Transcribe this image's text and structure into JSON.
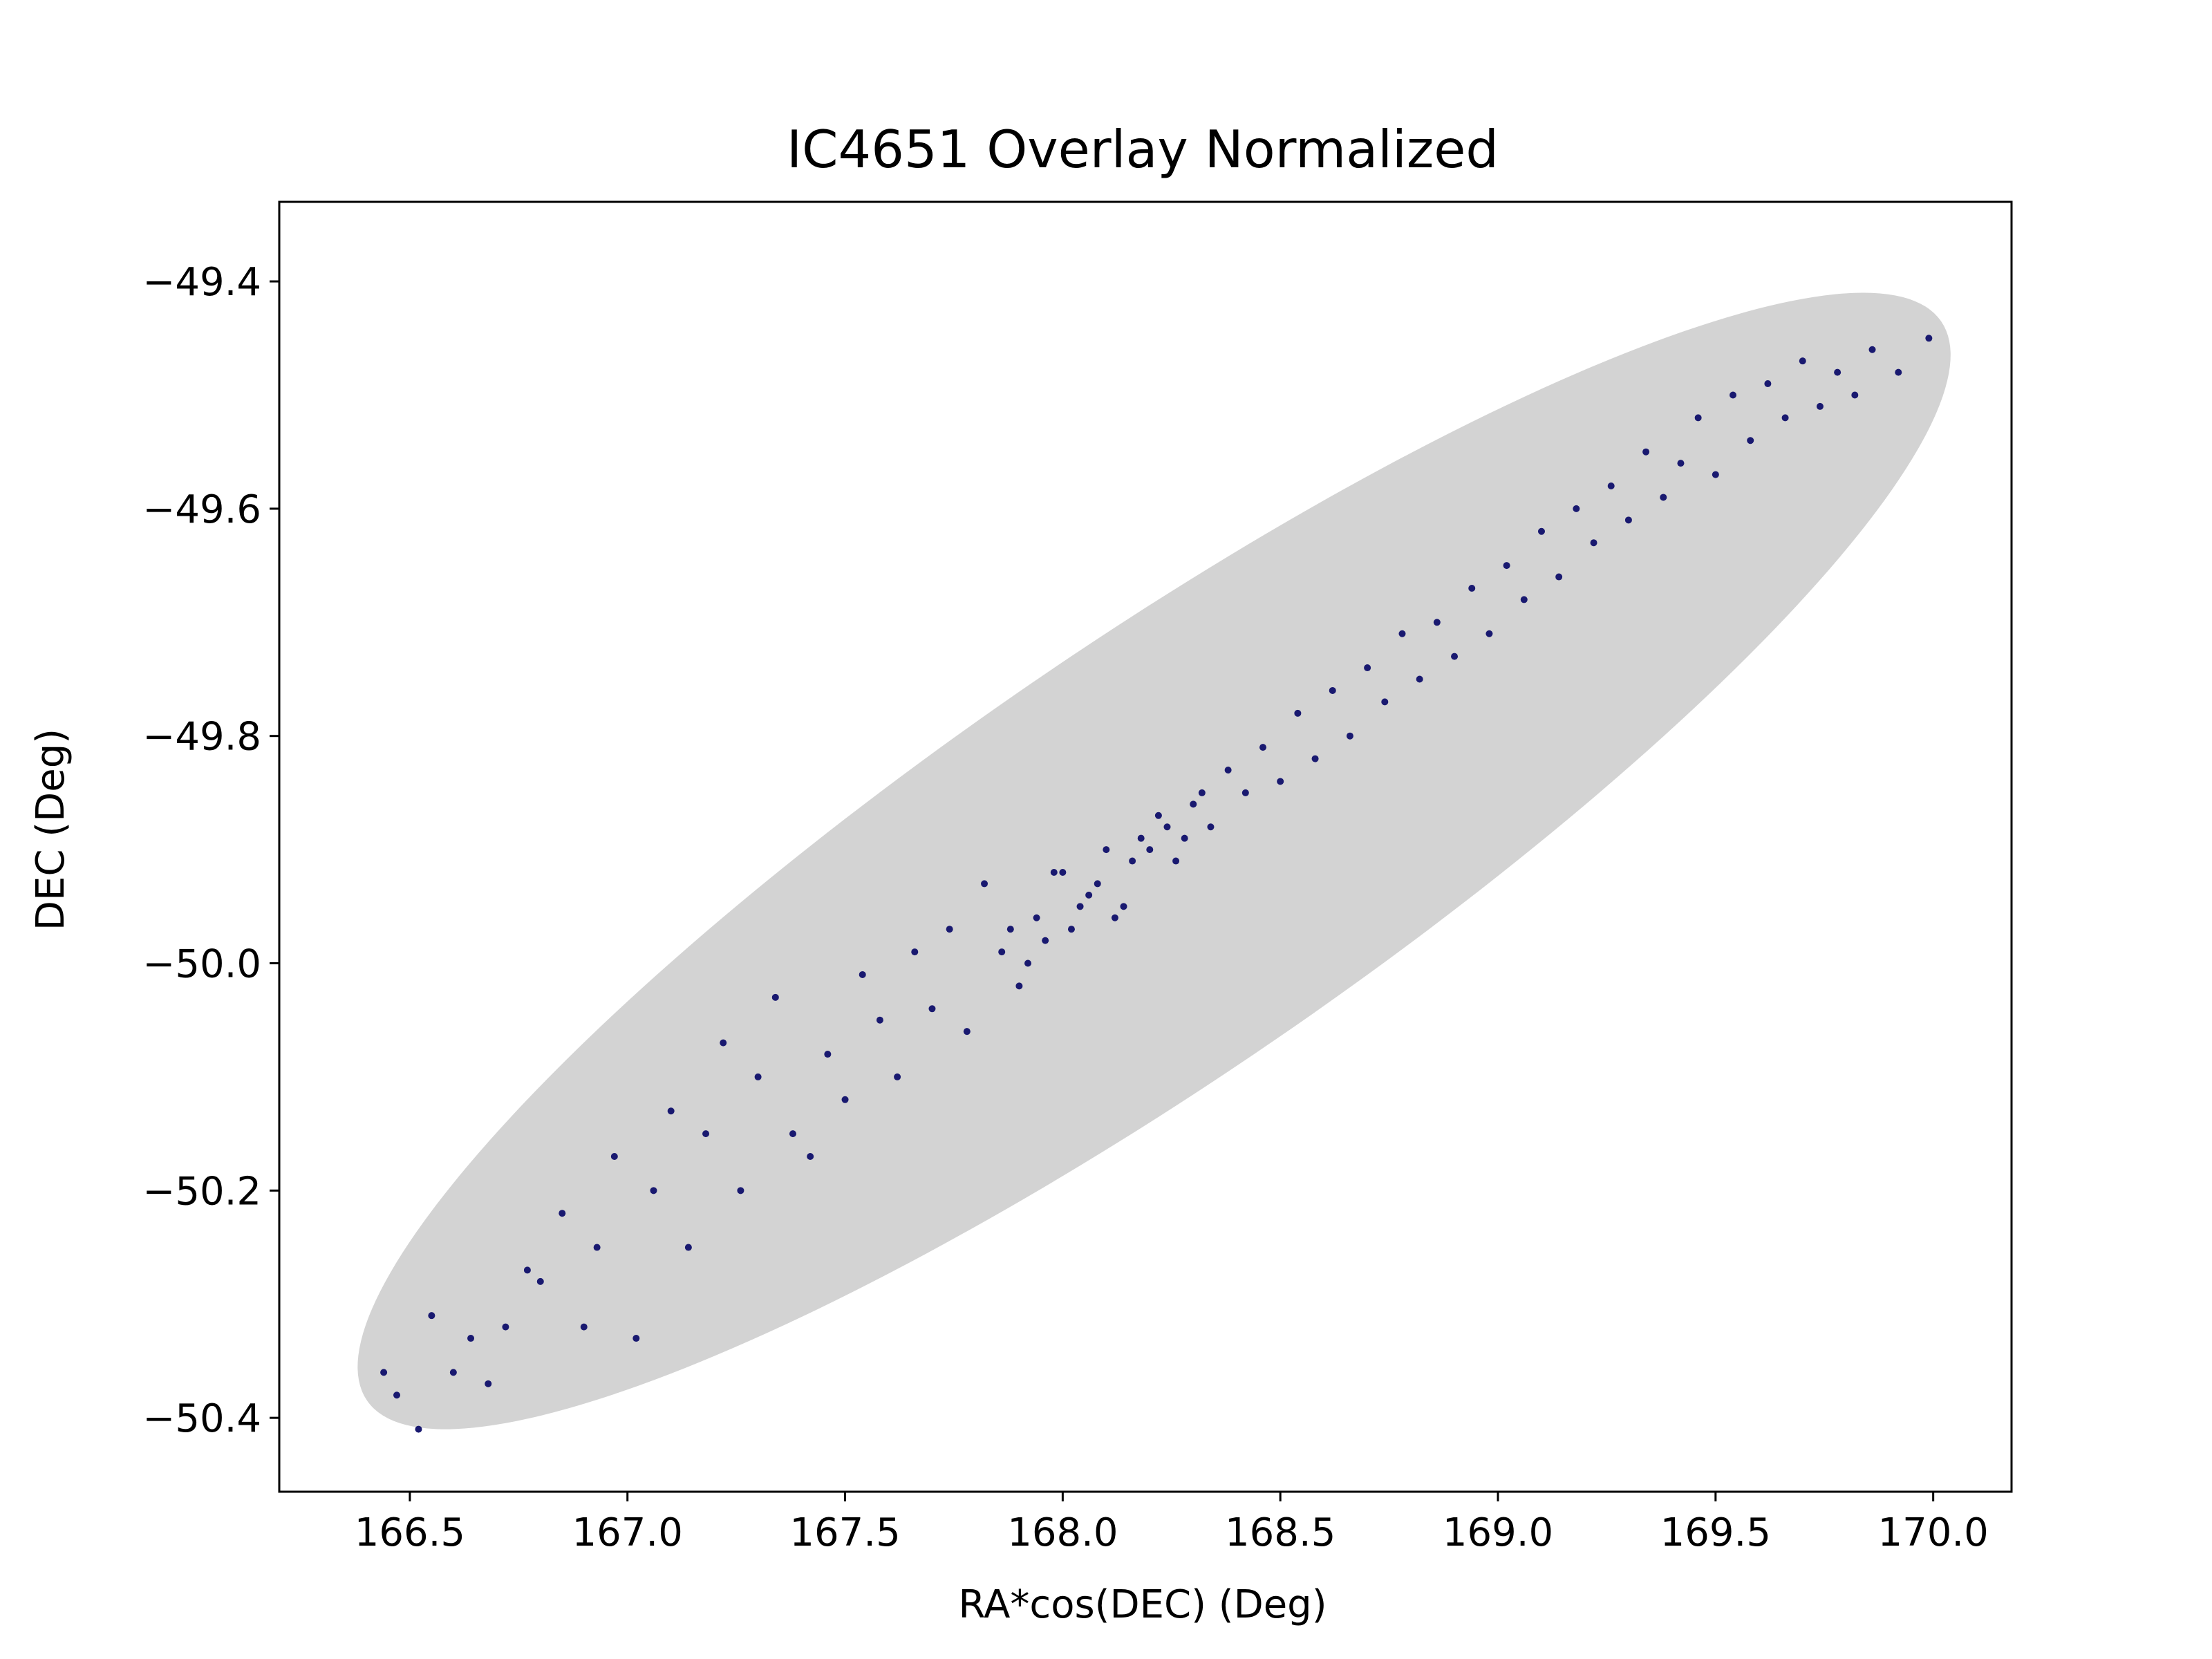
{
  "chart_data": {
    "type": "scatter",
    "title": "IC4651 Overlay Normalized",
    "xlabel": "RA*cos(DEC) (Deg)",
    "ylabel": "DEC (Deg)",
    "xlim": [
      166.2,
      170.18
    ],
    "ylim": [
      -50.465,
      -49.33
    ],
    "xticks": [
      {
        "value": 166.5,
        "label": "166.5"
      },
      {
        "value": 167.0,
        "label": "167.0"
      },
      {
        "value": 167.5,
        "label": "167.5"
      },
      {
        "value": 168.0,
        "label": "168.0"
      },
      {
        "value": 168.5,
        "label": "168.5"
      },
      {
        "value": 169.0,
        "label": "169.0"
      },
      {
        "value": 169.5,
        "label": "169.5"
      },
      {
        "value": 170.0,
        "label": "170.0"
      }
    ],
    "yticks": [
      {
        "value": -49.4,
        "label": "−49.4"
      },
      {
        "value": -49.6,
        "label": "−49.6"
      },
      {
        "value": -49.8,
        "label": "−49.8"
      },
      {
        "value": -50.0,
        "label": "−50.0"
      },
      {
        "value": -50.2,
        "label": "−50.2"
      },
      {
        "value": -50.4,
        "label": "−50.4"
      }
    ],
    "grid": false,
    "overlay_region": {
      "shape": "ellipse",
      "center": [
        168.2,
        -49.912
      ],
      "endpoints": [
        [
          166.42,
          -50.38
        ],
        [
          170.0,
          -49.44
        ]
      ],
      "semi_minor": 0.095,
      "color": "#d3d3d3"
    },
    "series": [
      {
        "color": "#191970",
        "points": [
          [
            166.44,
            -50.36
          ],
          [
            166.47,
            -50.38
          ],
          [
            166.52,
            -50.41
          ],
          [
            166.55,
            -50.31
          ],
          [
            166.6,
            -50.36
          ],
          [
            166.64,
            -50.33
          ],
          [
            166.68,
            -50.37
          ],
          [
            166.72,
            -50.32
          ],
          [
            166.77,
            -50.27
          ],
          [
            166.8,
            -50.28
          ],
          [
            166.85,
            -50.22
          ],
          [
            166.9,
            -50.32
          ],
          [
            166.93,
            -50.25
          ],
          [
            166.97,
            -50.17
          ],
          [
            167.02,
            -50.33
          ],
          [
            167.06,
            -50.2
          ],
          [
            167.1,
            -50.13
          ],
          [
            167.14,
            -50.25
          ],
          [
            167.18,
            -50.15
          ],
          [
            167.22,
            -50.07
          ],
          [
            167.26,
            -50.2
          ],
          [
            167.3,
            -50.1
          ],
          [
            167.34,
            -50.03
          ],
          [
            167.38,
            -50.15
          ],
          [
            167.42,
            -50.17
          ],
          [
            167.46,
            -50.08
          ],
          [
            167.5,
            -50.12
          ],
          [
            167.54,
            -50.01
          ],
          [
            167.58,
            -50.05
          ],
          [
            167.62,
            -50.1
          ],
          [
            167.66,
            -49.99
          ],
          [
            167.7,
            -50.04
          ],
          [
            167.74,
            -49.97
          ],
          [
            167.78,
            -50.06
          ],
          [
            167.82,
            -49.93
          ],
          [
            167.86,
            -49.99
          ],
          [
            167.9,
            -50.02
          ],
          [
            167.94,
            -49.96
          ],
          [
            167.98,
            -49.92
          ],
          [
            168.02,
            -49.97
          ],
          [
            168.06,
            -49.94
          ],
          [
            168.1,
            -49.9
          ],
          [
            168.14,
            -49.95
          ],
          [
            168.18,
            -49.89
          ],
          [
            168.22,
            -49.87
          ],
          [
            168.26,
            -49.91
          ],
          [
            168.3,
            -49.86
          ],
          [
            168.34,
            -49.88
          ],
          [
            168.38,
            -49.83
          ],
          [
            168.42,
            -49.85
          ],
          [
            168.46,
            -49.81
          ],
          [
            168.5,
            -49.84
          ],
          [
            168.54,
            -49.78
          ],
          [
            168.58,
            -49.82
          ],
          [
            168.62,
            -49.76
          ],
          [
            168.66,
            -49.8
          ],
          [
            168.7,
            -49.74
          ],
          [
            168.74,
            -49.77
          ],
          [
            168.78,
            -49.71
          ],
          [
            168.82,
            -49.75
          ],
          [
            168.86,
            -49.7
          ],
          [
            168.9,
            -49.73
          ],
          [
            168.94,
            -49.67
          ],
          [
            168.98,
            -49.71
          ],
          [
            169.02,
            -49.65
          ],
          [
            169.06,
            -49.68
          ],
          [
            169.1,
            -49.62
          ],
          [
            169.14,
            -49.66
          ],
          [
            169.18,
            -49.6
          ],
          [
            169.22,
            -49.63
          ],
          [
            169.26,
            -49.58
          ],
          [
            169.3,
            -49.61
          ],
          [
            169.34,
            -49.55
          ],
          [
            169.38,
            -49.59
          ],
          [
            169.42,
            -49.56
          ],
          [
            169.46,
            -49.52
          ],
          [
            169.5,
            -49.57
          ],
          [
            169.54,
            -49.5
          ],
          [
            169.58,
            -49.54
          ],
          [
            169.62,
            -49.49
          ],
          [
            169.66,
            -49.52
          ],
          [
            169.7,
            -49.47
          ],
          [
            169.74,
            -49.51
          ],
          [
            169.78,
            -49.48
          ],
          [
            169.82,
            -49.5
          ],
          [
            169.86,
            -49.46
          ],
          [
            169.92,
            -49.48
          ],
          [
            169.99,
            -49.45
          ],
          [
            168.0,
            -49.92
          ],
          [
            168.04,
            -49.95
          ],
          [
            168.08,
            -49.93
          ],
          [
            168.12,
            -49.96
          ],
          [
            168.16,
            -49.91
          ],
          [
            168.2,
            -49.9
          ],
          [
            168.24,
            -49.88
          ],
          [
            168.28,
            -49.89
          ],
          [
            167.96,
            -49.98
          ],
          [
            167.92,
            -50.0
          ],
          [
            167.88,
            -49.97
          ],
          [
            168.32,
            -49.85
          ]
        ]
      }
    ]
  }
}
